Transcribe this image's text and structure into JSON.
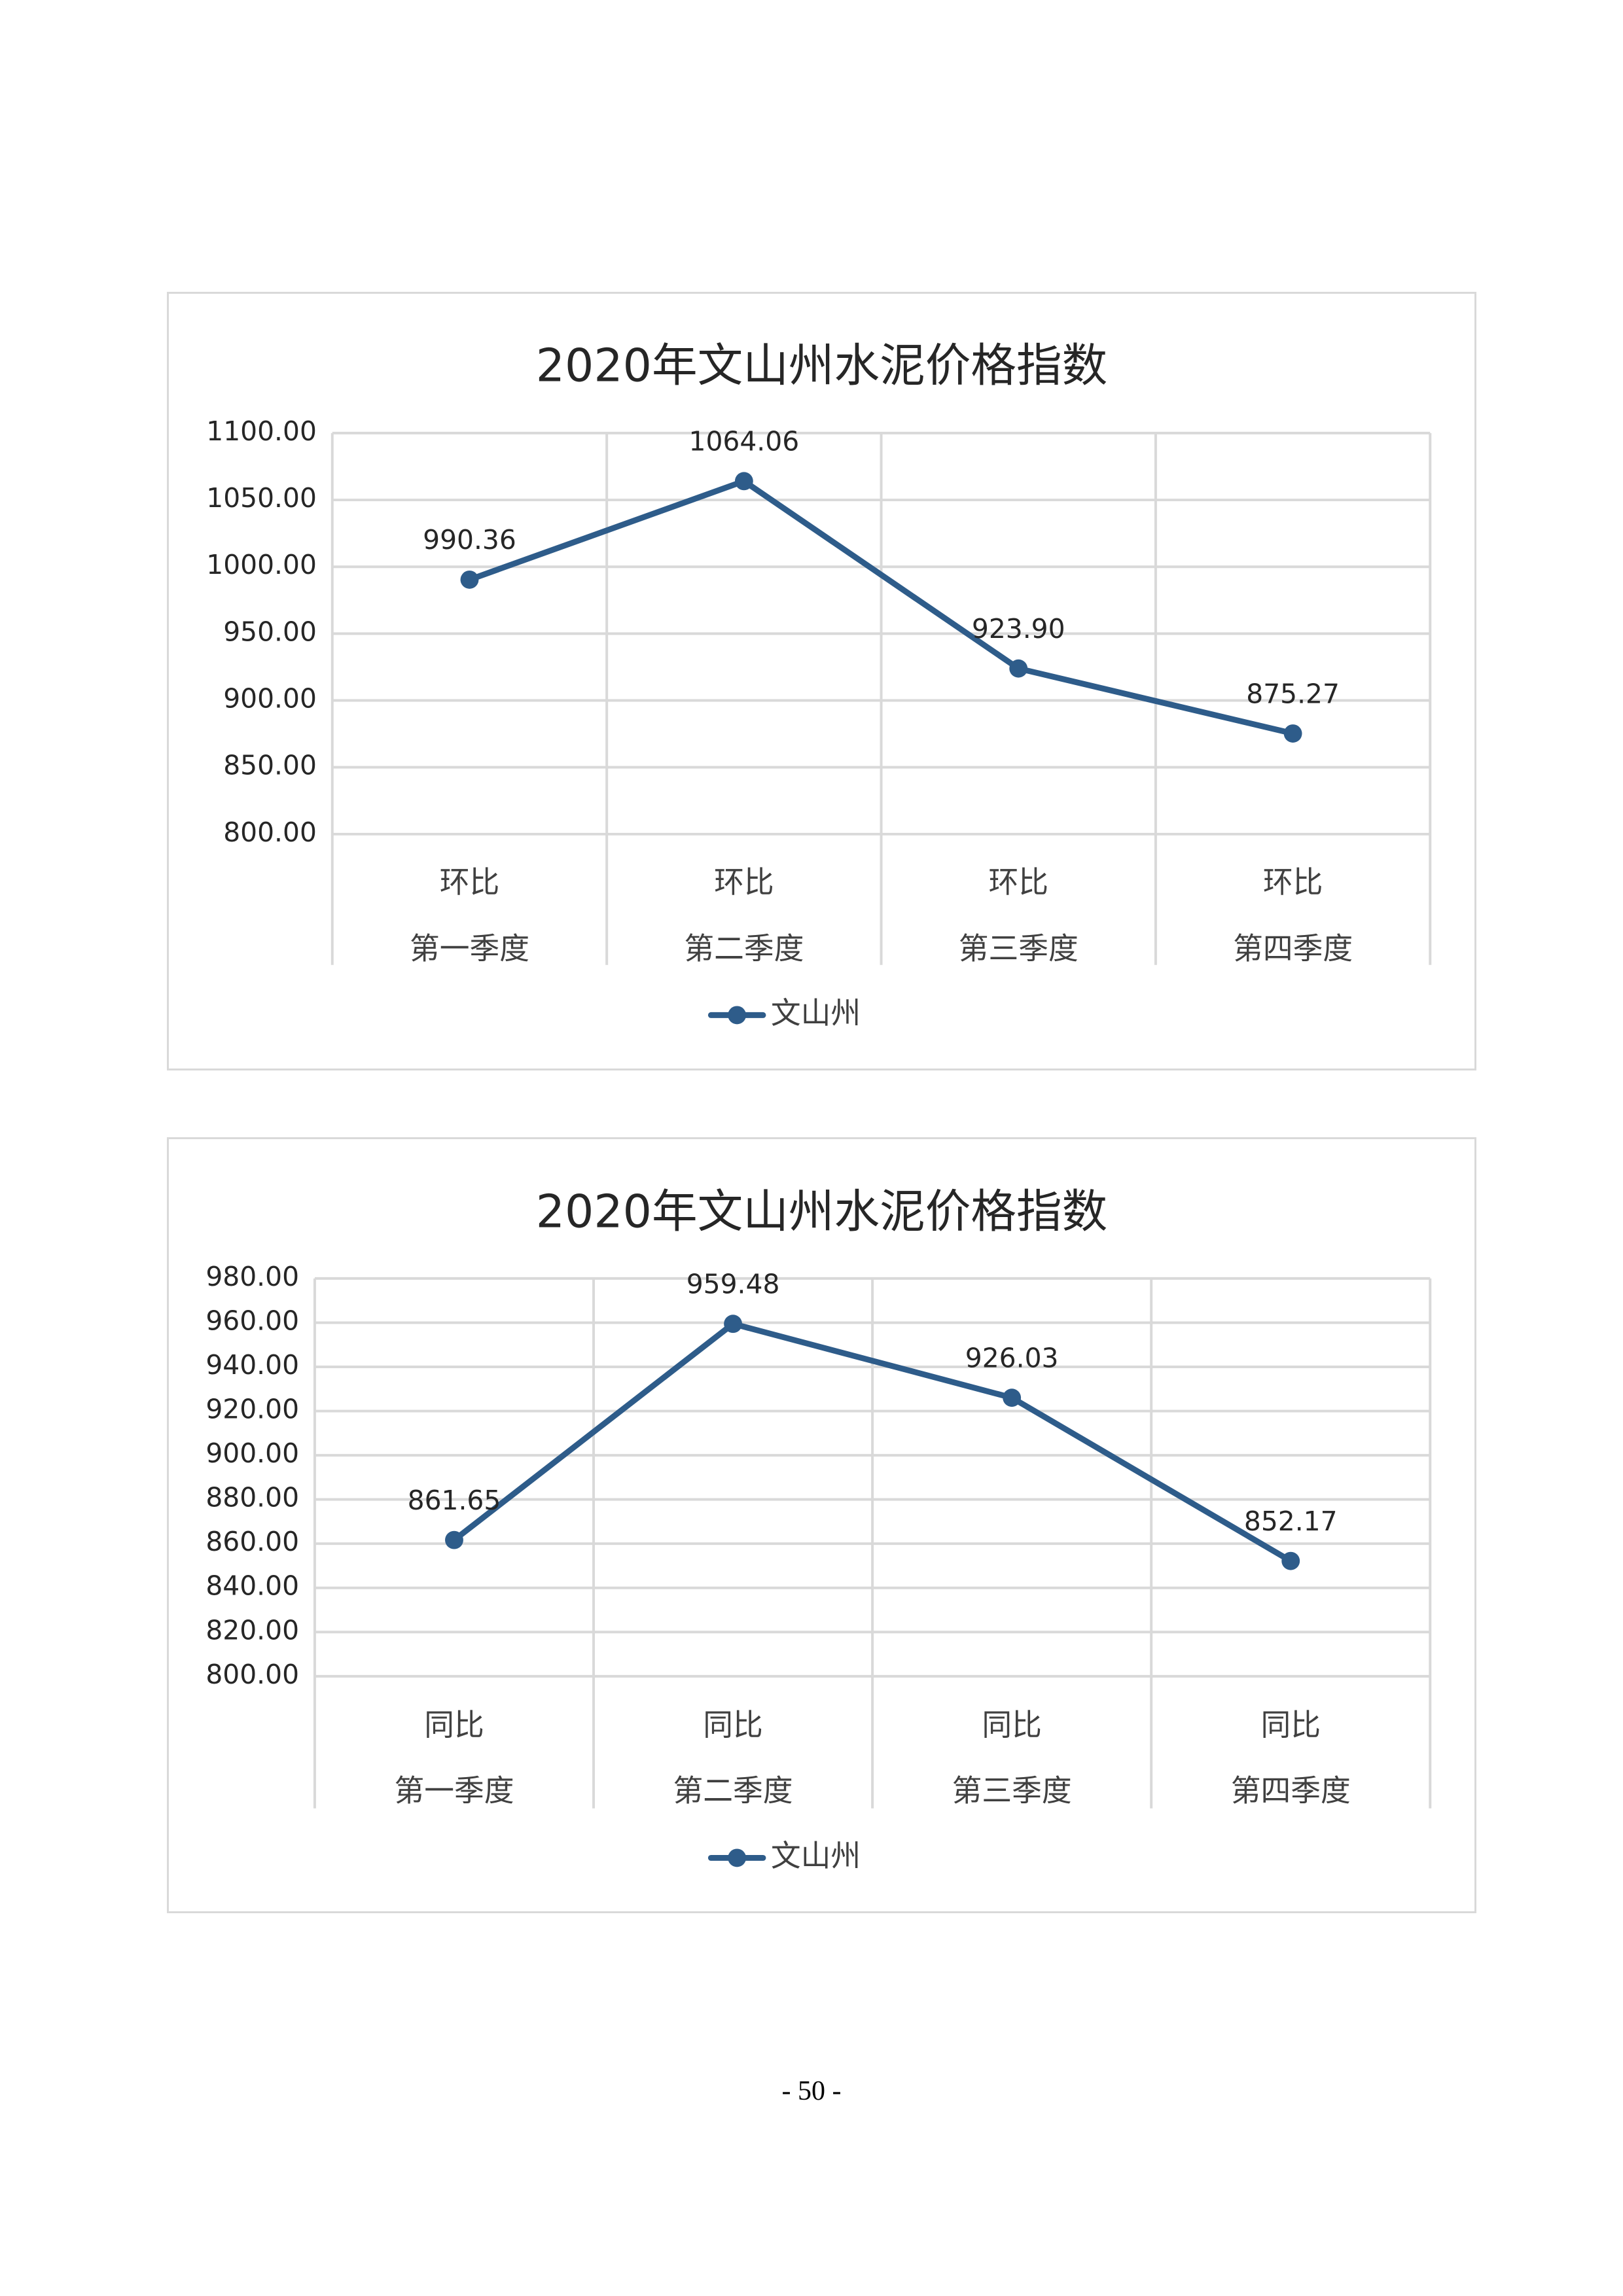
{
  "page": {
    "number": "- 50 -"
  },
  "colors": {
    "series": "#2e5c8a",
    "grid": "#d9d9d9",
    "text": "#262626"
  },
  "chart_data": [
    {
      "type": "line",
      "title": "2020年文山州水泥价格指数",
      "categories": [
        [
          "环比",
          "第一季度"
        ],
        [
          "环比",
          "第二季度"
        ],
        [
          "环比",
          "第三季度"
        ],
        [
          "环比",
          "第四季度"
        ]
      ],
      "series": [
        {
          "name": "文山州",
          "values": [
            990.36,
            1064.06,
            923.9,
            875.27
          ]
        }
      ],
      "data_labels": [
        "990.36",
        "1064.06",
        "923.90",
        "875.27"
      ],
      "ylim": [
        800,
        1100
      ],
      "yticks": [
        "800.00",
        "850.00",
        "900.00",
        "950.00",
        "1000.00",
        "1050.00",
        "1100.00"
      ],
      "xlabel": "",
      "ylabel": "",
      "grid": true,
      "legend": "bottom"
    },
    {
      "type": "line",
      "title": "2020年文山州水泥价格指数",
      "categories": [
        [
          "同比",
          "第一季度"
        ],
        [
          "同比",
          "第二季度"
        ],
        [
          "同比",
          "第三季度"
        ],
        [
          "同比",
          "第四季度"
        ]
      ],
      "series": [
        {
          "name": "文山州",
          "values": [
            861.65,
            959.48,
            926.03,
            852.17
          ]
        }
      ],
      "data_labels": [
        "861.65",
        "959.48",
        "926.03",
        "852.17"
      ],
      "ylim": [
        800,
        980
      ],
      "yticks": [
        "800.00",
        "820.00",
        "840.00",
        "860.00",
        "880.00",
        "900.00",
        "920.00",
        "940.00",
        "960.00",
        "980.00"
      ],
      "xlabel": "",
      "ylabel": "",
      "grid": true,
      "legend": "bottom"
    }
  ]
}
